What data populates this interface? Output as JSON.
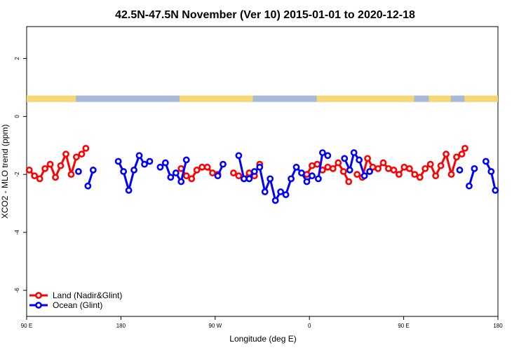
{
  "chart_data": {
    "type": "line",
    "title": "42.5N-47.5N November (Ver 10)   2015-01-01 to 2020-12-18",
    "xlabel": "Longitude (deg E)",
    "ylabel": "XCO2 - MLO trend (ppm)",
    "x_tick_values": [
      90,
      180,
      270,
      360,
      450,
      540
    ],
    "x_tick_labels": [
      "90 E",
      "180",
      "90 W",
      "0",
      "90 E",
      "180"
    ],
    "xlim": [
      90,
      540
    ],
    "y_tick_values": [
      2,
      0,
      -2,
      -4,
      -6
    ],
    "y_tick_labels": [
      "2",
      "0",
      "-2",
      "-4",
      "-6"
    ],
    "ylim": [
      -6.9,
      3.1
    ],
    "grid": false,
    "legend_position": "bottom-left",
    "land_ocean_strip": {
      "y_range": [
        0.5,
        0.72
      ],
      "land_color": "#f7d774",
      "ocean_color": "#a7b9d6",
      "land_segments": [
        [
          90,
          137
        ],
        [
          236,
          306
        ],
        [
          367,
          460
        ],
        [
          474,
          495
        ],
        [
          508,
          540
        ]
      ]
    },
    "series": [
      {
        "name": "Land (Nadir&Glint)",
        "color": "#ff0000",
        "segments": [
          [
            [
              92.5,
              -1.85
            ],
            [
              97.5,
              -2.05
            ],
            [
              102.5,
              -2.15
            ],
            [
              107.5,
              -1.8
            ],
            [
              112.5,
              -1.65
            ],
            [
              117.5,
              -2.1
            ],
            [
              122.5,
              -1.7
            ],
            [
              127.5,
              -1.3
            ],
            [
              132.5,
              -2.0
            ],
            [
              137.5,
              -1.4
            ],
            [
              142.5,
              -1.3
            ],
            [
              146.5,
              -1.1
            ]
          ],
          [
            [
              237.5,
              -1.8
            ],
            [
              242.5,
              -2.05
            ],
            [
              247.5,
              -2.15
            ],
            [
              252.5,
              -1.85
            ],
            [
              257.5,
              -1.75
            ],
            [
              262.5,
              -1.75
            ],
            [
              267.5,
              -1.95
            ],
            [
              272.5,
              -2.0
            ]
          ],
          [
            [
              287.5,
              -1.95
            ],
            [
              292.5,
              -2.05
            ],
            [
              297.5,
              -2.15
            ],
            [
              302.5,
              -1.95
            ],
            [
              307.5,
              -2.05
            ]
          ],
          [
            [
              312.5,
              -1.65
            ]
          ],
          [
            [
              357.5,
              -2.0
            ],
            [
              362.5,
              -1.7
            ],
            [
              367.5,
              -1.65
            ],
            [
              372.5,
              -1.85
            ],
            [
              377.5,
              -1.75
            ],
            [
              382.5,
              -1.8
            ],
            [
              387.5,
              -1.6
            ],
            [
              392.5,
              -1.9
            ],
            [
              397.5,
              -2.25
            ]
          ],
          [
            [
              405.5,
              -2.0
            ],
            [
              410.5,
              -2.1
            ],
            [
              415.5,
              -1.45
            ],
            [
              420.5,
              -1.75
            ],
            [
              425.5,
              -1.8
            ],
            [
              430.5,
              -1.6
            ],
            [
              435.5,
              -1.8
            ],
            [
              440.5,
              -1.85
            ],
            [
              445.5,
              -2.0
            ],
            [
              450.5,
              -1.75
            ],
            [
              455.5,
              -1.8
            ],
            [
              460.5,
              -2.0
            ],
            [
              465.5,
              -2.1
            ],
            [
              470.5,
              -1.8
            ],
            [
              475.5,
              -1.65
            ],
            [
              480.5,
              -2.05
            ],
            [
              485.5,
              -1.7
            ],
            [
              490.5,
              -1.3
            ],
            [
              495.5,
              -2.0
            ],
            [
              500.5,
              -1.4
            ],
            [
              505.5,
              -1.3
            ],
            [
              508.5,
              -1.1
            ]
          ]
        ]
      },
      {
        "name": "Ocean (Glint)",
        "color": "#0000ff",
        "segments": [
          [
            [
              139.5,
              -1.9
            ]
          ],
          [
            [
              148.5,
              -2.4
            ],
            [
              153.5,
              -1.85
            ]
          ],
          [
            [
              177.5,
              -1.55
            ],
            [
              182.5,
              -1.9
            ],
            [
              187.5,
              -2.55
            ],
            [
              192.5,
              -1.85
            ],
            [
              197.5,
              -1.35
            ],
            [
              202.5,
              -1.65
            ],
            [
              207.5,
              -1.55
            ]
          ],
          [
            [
              217.5,
              -1.75
            ],
            [
              222.5,
              -1.6
            ],
            [
              227.5,
              -2.1
            ],
            [
              232.5,
              -1.95
            ],
            [
              237.5,
              -2.25
            ],
            [
              242.5,
              -1.5
            ]
          ],
          [
            [
              272.5,
              -2.05
            ],
            [
              277.5,
              -1.65
            ]
          ],
          [
            [
              292.5,
              -1.35
            ],
            [
              297.5,
              -2.15
            ],
            [
              302.5,
              -2.15
            ],
            [
              307.5,
              -1.9
            ],
            [
              312.5,
              -1.75
            ],
            [
              317.5,
              -2.6
            ],
            [
              322.5,
              -2.15
            ],
            [
              327.5,
              -2.9
            ],
            [
              332.5,
              -2.6
            ],
            [
              337.5,
              -2.7
            ],
            [
              342.5,
              -2.15
            ],
            [
              347.5,
              -1.75
            ],
            [
              352.5,
              -1.95
            ],
            [
              357.5,
              -2.25
            ],
            [
              362.5,
              -2.05
            ]
          ],
          [
            [
              368.5,
              -2.15
            ],
            [
              372.5,
              -1.25
            ],
            [
              377.5,
              -1.35
            ]
          ],
          [
            [
              393.5,
              -1.45
            ],
            [
              398.5,
              -1.85
            ],
            [
              402.5,
              -1.25
            ],
            [
              407.5,
              -1.5
            ],
            [
              412.5,
              -2.05
            ],
            [
              417.5,
              -1.9
            ]
          ],
          [
            [
              503.5,
              -1.85
            ]
          ],
          [
            [
              512.5,
              -2.4
            ],
            [
              517.5,
              -1.8
            ]
          ],
          [
            [
              528.5,
              -1.55
            ],
            [
              533.5,
              -1.9
            ],
            [
              537.5,
              -2.55
            ]
          ]
        ]
      }
    ]
  }
}
